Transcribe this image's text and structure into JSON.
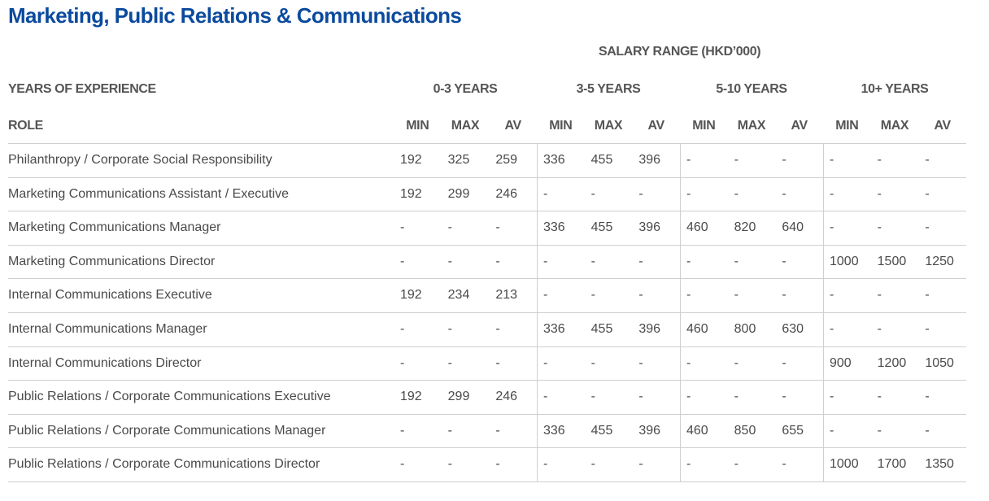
{
  "title": "Marketing, Public Relations & Communications",
  "salary_range": "SALARY RANGE (HKD’000)",
  "header": {
    "experience_label": "YEARS OF EXPERIENCE",
    "role_label": "ROLE",
    "groups": [
      "0-3 YEARS",
      "3-5 YEARS",
      "5-10 YEARS",
      "10+ YEARS"
    ],
    "columns": [
      "MIN",
      "MAX",
      "AV",
      "MIN",
      "MAX",
      "AV",
      "MIN",
      "MAX",
      "AV",
      "MIN",
      "MAX",
      "AV"
    ]
  },
  "rows": [
    {
      "role": "Philanthropy / Corporate Social Responsibility",
      "values": [
        192,
        325,
        259,
        336,
        455,
        396,
        "-",
        "-",
        "-",
        "-",
        "-",
        "-"
      ]
    },
    {
      "role": "Marketing Communications Assistant / Executive",
      "values": [
        192,
        299,
        246,
        "-",
        "-",
        "-",
        "-",
        "-",
        "-",
        "-",
        "-",
        "-"
      ]
    },
    {
      "role": "Marketing Communications Manager",
      "values": [
        "-",
        "-",
        "-",
        336,
        455,
        396,
        460,
        820,
        640,
        "-",
        "-",
        "-"
      ]
    },
    {
      "role": "Marketing Communications Director",
      "values": [
        "-",
        "-",
        "-",
        "-",
        "-",
        "-",
        "-",
        "-",
        "-",
        1000,
        1500,
        1250
      ]
    },
    {
      "role": "Internal Communications Executive",
      "values": [
        192,
        234,
        213,
        "-",
        "-",
        "-",
        "-",
        "-",
        "-",
        "-",
        "-",
        "-"
      ]
    },
    {
      "role": "Internal Communications Manager",
      "values": [
        "-",
        "-",
        "-",
        336,
        455,
        396,
        460,
        800,
        630,
        "-",
        "-",
        "-"
      ]
    },
    {
      "role": "Internal Communications Director",
      "values": [
        "-",
        "-",
        "-",
        "-",
        "-",
        "-",
        "-",
        "-",
        "-",
        900,
        1200,
        1050
      ]
    },
    {
      "role": "Public Relations / Corporate Communications Executive",
      "values": [
        192,
        299,
        246,
        "-",
        "-",
        "-",
        "-",
        "-",
        "-",
        "-",
        "-",
        "-"
      ]
    },
    {
      "role": "Public Relations / Corporate Communications Manager",
      "values": [
        "-",
        "-",
        "-",
        336,
        455,
        396,
        460,
        850,
        655,
        "-",
        "-",
        "-"
      ]
    },
    {
      "role": "Public Relations / Corporate Communications Director",
      "values": [
        "-",
        "-",
        "-",
        "-",
        "-",
        "-",
        "-",
        "-",
        "-",
        1000,
        1700,
        1350
      ]
    }
  ]
}
